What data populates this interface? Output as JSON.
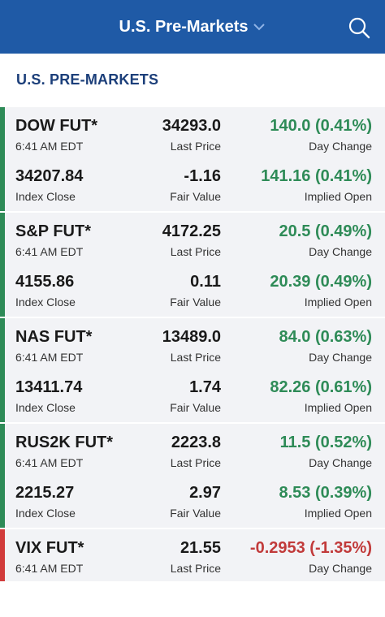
{
  "header": {
    "title": "U.S. Pre-Markets"
  },
  "section_title": "U.S. PRE-MARKETS",
  "labels": {
    "last_price": "Last Price",
    "day_change": "Day Change",
    "index_close": "Index Close",
    "fair_value": "Fair Value",
    "implied_open": "Implied Open"
  },
  "colors": {
    "header_bg": "#1f5aa6",
    "positive": "#2e8b57",
    "negative": "#c13a3a"
  },
  "markets": [
    {
      "name": "DOW FUT*",
      "time": "6:41 AM EDT",
      "last_price": "34293.0",
      "day_change": "140.0 (0.41%)",
      "index_close": "34207.84",
      "fair_value": "-1.16",
      "implied_open": "141.16 (0.41%)"
    },
    {
      "name": "S&P FUT*",
      "time": "6:41 AM EDT",
      "last_price": "4172.25",
      "day_change": "20.5 (0.49%)",
      "index_close": "4155.86",
      "fair_value": "0.11",
      "implied_open": "20.39 (0.49%)"
    },
    {
      "name": "NAS FUT*",
      "time": "6:41 AM EDT",
      "last_price": "13489.0",
      "day_change": "84.0 (0.63%)",
      "index_close": "13411.74",
      "fair_value": "1.74",
      "implied_open": "82.26 (0.61%)"
    },
    {
      "name": "RUS2K FUT*",
      "time": "6:41 AM EDT",
      "last_price": "2223.8",
      "day_change": "11.5 (0.52%)",
      "index_close": "2215.27",
      "fair_value": "2.97",
      "implied_open": "8.53 (0.39%)"
    },
    {
      "name": "VIX FUT*",
      "time": "6:41 AM EDT",
      "last_price": "21.55",
      "day_change": "-0.2953 (-1.35%)"
    }
  ]
}
